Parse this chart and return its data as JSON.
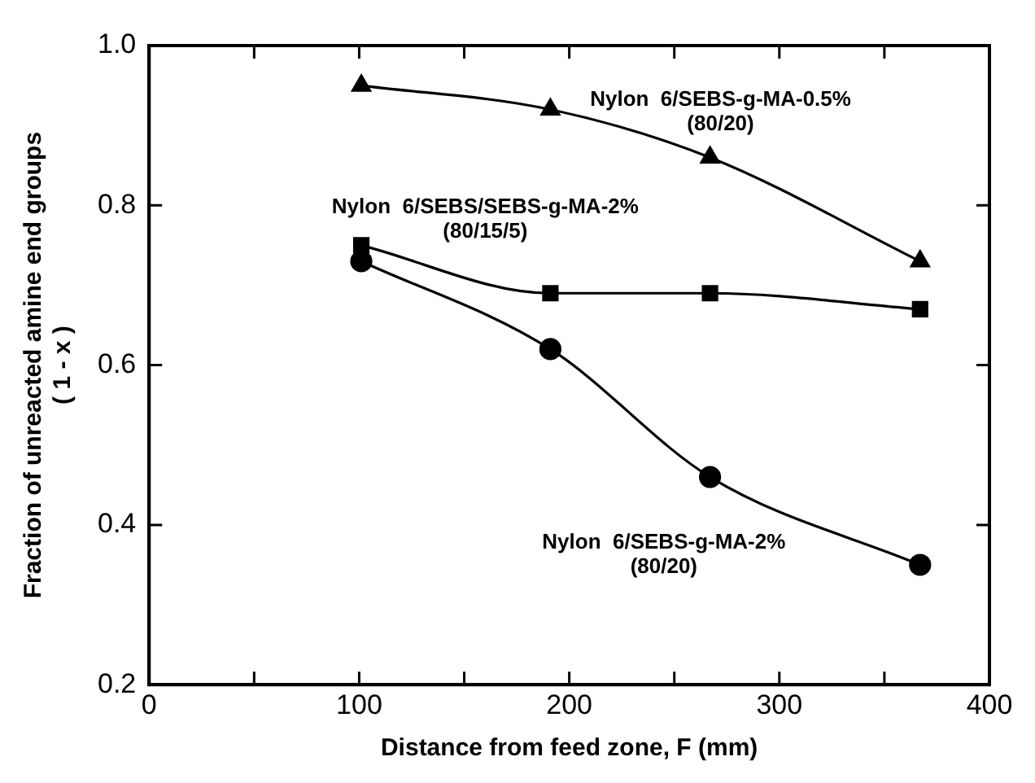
{
  "chart_data": {
    "type": "line",
    "xlabel": "Distance from feed zone, F (mm)",
    "ylabel": "Fraction of unreacted amine end groups\n( 1 - x )",
    "xlim": [
      0,
      400
    ],
    "xticks": [
      0,
      {
        "value": 50,
        "label": null
      },
      100,
      {
        "value": 150,
        "label": null
      },
      200,
      {
        "value": 250,
        "label": null
      },
      300,
      {
        "value": 350,
        "label": null
      },
      400
    ],
    "ylim": [
      0.2,
      1.0
    ],
    "yticks": [
      0.2,
      0.4,
      0.6,
      0.8,
      {
        "value": 1.0,
        "label": "1.0"
      }
    ],
    "grid": false,
    "legend": false,
    "line_style": "solid",
    "series": [
      {
        "name": "Nylon  6/SEBS-g-MA-0.5%\n(80/20)",
        "color": "#000000",
        "marker": "triangle",
        "x": [
          101,
          191,
          267,
          367
        ],
        "values": [
          0.95,
          0.92,
          0.86,
          0.73
        ]
      },
      {
        "name": "Nylon  6/SEBS/SEBS-g-MA-2%\n(80/15/5)",
        "color": "#000000",
        "marker": "square",
        "x": [
          101,
          191,
          267,
          367
        ],
        "values": [
          0.75,
          0.69,
          0.69,
          0.67
        ]
      },
      {
        "name": "Nylon  6/SEBS-g-MA-2%\n(80/20)",
        "color": "#000000",
        "marker": "circle",
        "x": [
          101,
          191,
          267,
          367
        ],
        "values": [
          0.73,
          0.62,
          0.46,
          0.35
        ]
      }
    ]
  }
}
